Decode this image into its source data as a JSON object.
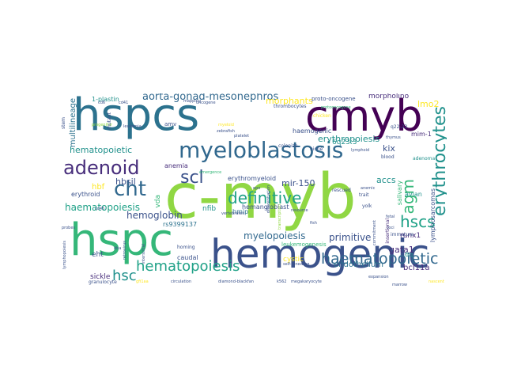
{
  "palette": {
    "purple": "#440154",
    "indigo": "#3b528b",
    "blue": "#31688e",
    "teal": "#21918c",
    "green": "#35b779",
    "lime": "#90d743",
    "yellow": "#fde725",
    "cyan": "#1fa187",
    "navy": "#472d7b",
    "sea": "#2c728e"
  },
  "words": {
    "c_myb": "c-myb",
    "hemogenic": "hemogenic",
    "hspcs": "hspcs",
    "hspc": "hspc",
    "cmyb": "cmyb",
    "myeloblastosis": "myeloblastosis",
    "adenoid": "adenoid",
    "cht": "cht",
    "erythrocytes": "erythrocytes",
    "definitive": "definitive",
    "hematopoiesis": "hematopoiesis",
    "haematopoietic": "haematopoietic",
    "scl": "scl",
    "agm": "agm",
    "hscs": "hscs",
    "hsc": "hsc",
    "aorta_gonad_mesonephros": "aorta-gonad-mesonephros",
    "multilineage": "multilineage",
    "hematopoietic": "hematopoietic",
    "hemoglobin": "hemoglobin",
    "haematopoiesis": "haematopoiesis",
    "myelopoiesis": "myelopoiesis",
    "primitive": "primitive",
    "erythropoiesis": "erythropoiesis",
    "lmo2": "lmo2",
    "morphants": "morphants",
    "morpholino": "morpholino",
    "proto_oncogene": "proto-oncogene",
    "one_l_plastin": "1-plastin",
    "mir_150": "mir-150",
    "accs": "accs",
    "kix": "kix",
    "gata1": "gata1",
    "hbsil": "hbsil",
    "hbf": "hbf",
    "runx1": "runx1",
    "endothelium": "endothelium",
    "bcl11a": "bcl11a",
    "cystic": "cystic",
    "hmip": "hmip",
    "nfib": "nfib",
    "rs9399137": "rs9399137",
    "eht": "eht",
    "sickle": "sickle",
    "caudal": "caudal",
    "erythroid": "erythroid",
    "anemia": "anemia",
    "hemangioblast": "hemangioblast",
    "erythromyeloid": "erythromyeloid",
    "leukemogenesis": "leukemogenesis",
    "six_q": "6q",
    "avian": "avian",
    "mim_1": "mim-1",
    "adenoma": "adenoma",
    "lymphosarcomas": "lymphosarcomas",
    "vda": "vda",
    "haemogenic": "haemogenic",
    "sixq23_3": "6q23.3",
    "salivary": "salivary",
    "thrombocytes": "thrombocytes",
    "amv": "amv",
    "colonize": "colonize",
    "niche": "niche",
    "rescued": "rescued",
    "yolk": "yolk",
    "trait": "trait",
    "fetal": "fetal",
    "immature": "immature",
    "granulocyte": "granulocyte",
    "circulation": "circulation",
    "diamond_blackfan": "diamond-blackfan",
    "k562": "k562",
    "megakaryocyte": "megakaryocyte",
    "homing": "homing",
    "insertional": "insertional",
    "anemic": "anemic",
    "mapping": "mapping",
    "chicken": "chicken",
    "protooncogene": "protooncogene",
    "zebrafish": "zebrafish",
    "myeloid": "myeloid",
    "platelet": "platelet",
    "lymphoid": "lymphoid",
    "blood": "blood",
    "fish": "fish",
    "loci": "loci",
    "probes": "probes",
    "retrovirus": "retrovirus",
    "interstitial": "interstitial",
    "dba": "dba",
    "cd41": "cd41",
    "cd45": "cd45",
    "cd6": "cd6",
    "epo": "epo",
    "vertebrates": "vertebrates",
    "resource": "resource",
    "progenitor": "progenitor",
    "differentiation": "differentiation",
    "thymus": "thymus",
    "lymphopoiesis": "lymphopoiesis",
    "transcription": "transcription",
    "leukemia": "leukemia",
    "emergence": "emergence",
    "self_renewing": "self-renewing",
    "commitment": "commitment",
    "gfi1aa": "gfi1aa",
    "nascent": "nascent",
    "expansion": "expansion",
    "marrow": "marrow",
    "oncogene": "oncogene",
    "q22_23": "q22-23",
    "mutant": "mutant",
    "stem": "stem"
  }
}
